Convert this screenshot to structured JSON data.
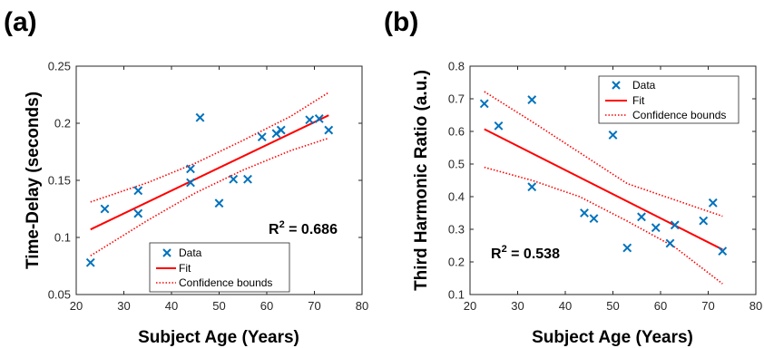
{
  "chart_data": [
    {
      "panel_label": "(a)",
      "type": "scatter",
      "xlabel": "Subject Age (Years)",
      "ylabel": "Time-Delay (seconds)",
      "xlim": [
        20,
        80
      ],
      "ylim": [
        0.05,
        0.25
      ],
      "xticks": [
        "20",
        "30",
        "40",
        "50",
        "60",
        "70",
        "80"
      ],
      "yticks": [
        "0.05",
        "0.1",
        "0.15",
        "0.2",
        "0.25"
      ],
      "annotation": {
        "prefix": "R",
        "sup": "2",
        "suffix": " = 0.686"
      },
      "legend": {
        "placement": "bottom-center",
        "entries": [
          "Data",
          "Fit",
          "Confidence bounds"
        ]
      },
      "series": [
        {
          "name": "Data",
          "style": "x-marker",
          "color": "#0072BD",
          "points": [
            [
              23,
              0.078
            ],
            [
              26,
              0.125
            ],
            [
              33,
              0.141
            ],
            [
              33,
              0.121
            ],
            [
              44,
              0.16
            ],
            [
              44,
              0.148
            ],
            [
              46,
              0.205
            ],
            [
              50,
              0.13
            ],
            [
              53,
              0.151
            ],
            [
              56,
              0.151
            ],
            [
              59,
              0.188
            ],
            [
              62,
              0.191
            ],
            [
              63,
              0.194
            ],
            [
              69,
              0.203
            ],
            [
              71,
              0.204
            ],
            [
              73,
              0.194
            ]
          ]
        },
        {
          "name": "Fit",
          "style": "line",
          "color": "#ff0000",
          "points": [
            [
              23,
              0.107
            ],
            [
              73,
              0.207
            ]
          ]
        },
        {
          "name": "Confidence bounds",
          "style": "dotted",
          "color": "#ff0000",
          "upper": [
            [
              23,
              0.131
            ],
            [
              35,
              0.148
            ],
            [
              45,
              0.165
            ],
            [
              55,
              0.185
            ],
            [
              65,
              0.206
            ],
            [
              73,
              0.227
            ]
          ],
          "lower": [
            [
              23,
              0.084
            ],
            [
              35,
              0.115
            ],
            [
              45,
              0.139
            ],
            [
              55,
              0.159
            ],
            [
              65,
              0.176
            ],
            [
              73,
              0.187
            ]
          ]
        }
      ]
    },
    {
      "panel_label": "(b)",
      "type": "scatter",
      "xlabel": "Subject Age (Years)",
      "ylabel": "Third Harmonic Ratio (a.u.)",
      "xlim": [
        20,
        80
      ],
      "ylim": [
        0.1,
        0.8
      ],
      "xticks": [
        "20",
        "30",
        "40",
        "50",
        "60",
        "70",
        "80"
      ],
      "yticks": [
        "0.1",
        "0.2",
        "0.3",
        "0.4",
        "0.5",
        "0.6",
        "0.7",
        "0.8"
      ],
      "annotation": {
        "prefix": "R",
        "sup": "2",
        "suffix": " = 0.538"
      },
      "legend": {
        "placement": "top-right",
        "entries": [
          "Data",
          "Fit",
          "Confidence bounds"
        ]
      },
      "series": [
        {
          "name": "Data",
          "style": "x-marker",
          "color": "#0072BD",
          "points": [
            [
              23,
              0.685
            ],
            [
              26,
              0.617
            ],
            [
              33,
              0.697
            ],
            [
              33,
              0.43
            ],
            [
              44,
              0.35
            ],
            [
              46,
              0.333
            ],
            [
              50,
              0.589
            ],
            [
              53,
              0.243
            ],
            [
              56,
              0.338
            ],
            [
              59,
              0.305
            ],
            [
              62,
              0.257
            ],
            [
              63,
              0.313
            ],
            [
              69,
              0.326
            ],
            [
              71,
              0.381
            ],
            [
              73,
              0.233
            ]
          ]
        },
        {
          "name": "Fit",
          "style": "line",
          "color": "#ff0000",
          "points": [
            [
              23,
              0.607
            ],
            [
              73,
              0.238
            ]
          ]
        },
        {
          "name": "Confidence bounds",
          "style": "dotted",
          "color": "#ff0000",
          "upper": [
            [
              23,
              0.722
            ],
            [
              33,
              0.63
            ],
            [
              43,
              0.535
            ],
            [
              53,
              0.44
            ],
            [
              63,
              0.39
            ],
            [
              73,
              0.34
            ]
          ],
          "lower": [
            [
              23,
              0.49
            ],
            [
              33,
              0.45
            ],
            [
              43,
              0.4
            ],
            [
              53,
              0.325
            ],
            [
              63,
              0.245
            ],
            [
              73,
              0.133
            ]
          ]
        }
      ]
    }
  ]
}
